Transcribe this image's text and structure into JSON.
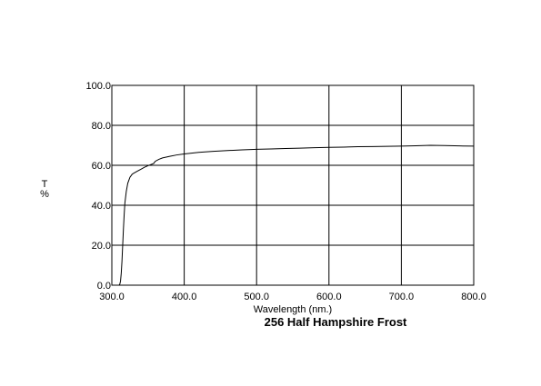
{
  "chart_data": {
    "type": "line",
    "title": "256 Half Hampshire Frost",
    "xlabel": "Wavelength (nm.)",
    "ylabel_lines": [
      "T",
      "%"
    ],
    "xlim": [
      300,
      800
    ],
    "ylim": [
      0,
      100
    ],
    "x_ticks": [
      "300.0",
      "400.0",
      "500.0",
      "600.0",
      "700.0",
      "800.0"
    ],
    "y_ticks": [
      "0.0",
      "20.0",
      "40.0",
      "60.0",
      "80.0",
      "100.0"
    ],
    "x_tick_values": [
      300,
      400,
      500,
      600,
      700,
      800
    ],
    "y_tick_values": [
      0,
      20,
      40,
      60,
      80,
      100
    ],
    "grid": true,
    "colors": {
      "line": "#000000",
      "grid": "#000000",
      "background": "#ffffff"
    },
    "series": [
      {
        "x": [
          310,
          311,
          312,
          313,
          314,
          315,
          316,
          317,
          318,
          320,
          322,
          325,
          328,
          330,
          335,
          340,
          345,
          350,
          355,
          358,
          360,
          365,
          370,
          380,
          390,
          400,
          410,
          420,
          440,
          460,
          480,
          500,
          520,
          540,
          560,
          580,
          600,
          620,
          640,
          660,
          680,
          700,
          720,
          740,
          760,
          780,
          800
        ],
        "y": [
          0,
          0.5,
          2,
          6,
          12,
          20,
          28,
          35,
          41,
          47,
          51,
          54,
          55.5,
          56,
          57,
          58,
          59,
          59.8,
          60.5,
          61,
          62,
          63,
          63.7,
          64.5,
          65.2,
          65.7,
          66.1,
          66.5,
          67,
          67.4,
          67.7,
          68,
          68.2,
          68.4,
          68.6,
          68.8,
          69,
          69.1,
          69.3,
          69.4,
          69.5,
          69.6,
          69.8,
          70,
          69.9,
          69.7,
          69.6
        ]
      }
    ]
  }
}
